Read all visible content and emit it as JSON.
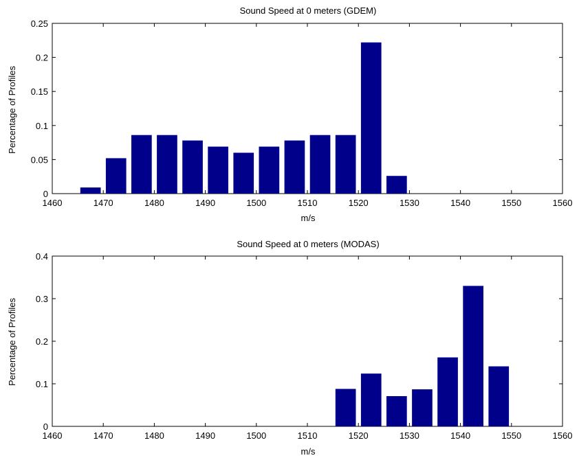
{
  "chart_data": [
    {
      "type": "bar",
      "title": "Sound Speed at 0 meters (GDEM)",
      "xlabel": "m/s",
      "ylabel": "Percentage of Profiles",
      "xlim": [
        1460,
        1560
      ],
      "ylim": [
        0,
        0.25
      ],
      "xticks": [
        1460,
        1470,
        1480,
        1490,
        1500,
        1510,
        1520,
        1530,
        1540,
        1550,
        1560
      ],
      "yticks": [
        0,
        0.05,
        0.1,
        0.15,
        0.2,
        0.25
      ],
      "ytick_labels": [
        "0",
        "0.05",
        "0.1",
        "0.15",
        "0.2",
        "0.25"
      ],
      "bar_color": "#00008b",
      "bar_width": 4.0,
      "x": [
        1467.5,
        1472.5,
        1477.5,
        1482.5,
        1487.5,
        1492.5,
        1497.5,
        1502.5,
        1507.5,
        1512.5,
        1517.5,
        1522.5,
        1527.5
      ],
      "values": [
        0.009,
        0.052,
        0.086,
        0.086,
        0.078,
        0.069,
        0.06,
        0.069,
        0.078,
        0.086,
        0.086,
        0.222,
        0.026
      ],
      "grid": false
    },
    {
      "type": "bar",
      "title": "Sound Speed at 0 meters (MODAS)",
      "xlabel": "m/s",
      "ylabel": "Percentage of Profiles",
      "xlim": [
        1460,
        1560
      ],
      "ylim": [
        0,
        0.4
      ],
      "xticks": [
        1460,
        1470,
        1480,
        1490,
        1500,
        1510,
        1520,
        1530,
        1540,
        1550,
        1560
      ],
      "yticks": [
        0,
        0.1,
        0.2,
        0.3,
        0.4
      ],
      "ytick_labels": [
        "0",
        "0.1",
        "0.2",
        "0.3",
        "0.4"
      ],
      "bar_color": "#00008b",
      "bar_width": 4.0,
      "x": [
        1517.5,
        1522.5,
        1527.5,
        1532.5,
        1537.5,
        1542.5,
        1547.5
      ],
      "values": [
        0.088,
        0.124,
        0.071,
        0.087,
        0.162,
        0.33,
        0.141
      ],
      "grid": false
    }
  ]
}
